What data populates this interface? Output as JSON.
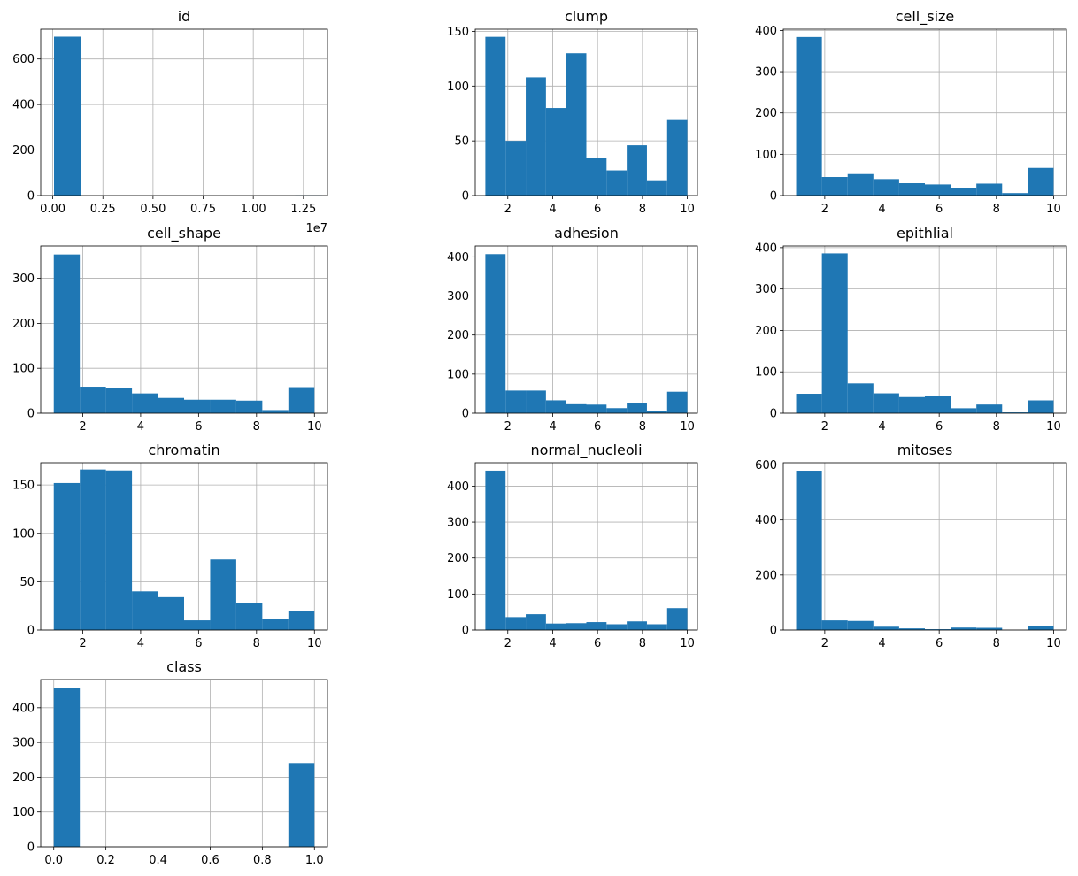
{
  "figure": {
    "background": "#ffffff",
    "bar_color": "#1f77b4",
    "grid_color": "#b0b0b0"
  },
  "chart_data": [
    {
      "type": "bar",
      "title": "id",
      "grid": true,
      "xlim": [
        -600000,
        13700000
      ],
      "ylim": [
        0,
        731
      ],
      "xticks": [
        0,
        2500000,
        5000000,
        7500000,
        10000000,
        12500000
      ],
      "xtick_labels": [
        "0.00",
        "0.25",
        "0.50",
        "0.75",
        "1.00",
        "1.25"
      ],
      "xaxis_offset": "1e7",
      "yticks": [
        0,
        200,
        400,
        600
      ],
      "ytick_labels": [
        "0",
        "200",
        "400",
        "600"
      ],
      "bins": [
        61777,
        1398155,
        2734533,
        4070911,
        5407289,
        6743667,
        8080045,
        9416423,
        10752801,
        12089179,
        13425557
      ],
      "counts": [
        698,
        0,
        0,
        0,
        0,
        0,
        0,
        0,
        0,
        1
      ]
    },
    {
      "type": "bar",
      "title": "clump",
      "grid": true,
      "xlim": [
        0.55,
        10.45
      ],
      "ylim": [
        0,
        152
      ],
      "xticks": [
        2,
        4,
        6,
        8,
        10
      ],
      "xtick_labels": [
        "2",
        "4",
        "6",
        "8",
        "10"
      ],
      "yticks": [
        0,
        50,
        100,
        150
      ],
      "ytick_labels": [
        "0",
        "50",
        "100",
        "150"
      ],
      "bins": [
        1,
        1.9,
        2.8,
        3.7,
        4.6,
        5.5,
        6.4,
        7.3,
        8.2,
        9.1,
        10
      ],
      "counts": [
        145,
        50,
        108,
        80,
        130,
        34,
        23,
        46,
        14,
        69
      ]
    },
    {
      "type": "bar",
      "title": "cell_size",
      "grid": true,
      "xlim": [
        0.55,
        10.45
      ],
      "ylim": [
        0,
        403
      ],
      "xticks": [
        2,
        4,
        6,
        8,
        10
      ],
      "xtick_labels": [
        "2",
        "4",
        "6",
        "8",
        "10"
      ],
      "yticks": [
        0,
        100,
        200,
        300,
        400
      ],
      "ytick_labels": [
        "0",
        "100",
        "200",
        "300",
        "400"
      ],
      "bins": [
        1,
        1.9,
        2.8,
        3.7,
        4.6,
        5.5,
        6.4,
        7.3,
        8.2,
        9.1,
        10
      ],
      "counts": [
        384,
        45,
        52,
        40,
        30,
        27,
        19,
        29,
        6,
        67
      ]
    },
    {
      "type": "bar",
      "title": "cell_shape",
      "grid": true,
      "xlim": [
        0.55,
        10.45
      ],
      "ylim": [
        0,
        372
      ],
      "xticks": [
        2,
        4,
        6,
        8,
        10
      ],
      "xtick_labels": [
        "2",
        "4",
        "6",
        "8",
        "10"
      ],
      "yticks": [
        0,
        100,
        200,
        300
      ],
      "ytick_labels": [
        "0",
        "100",
        "200",
        "300"
      ],
      "bins": [
        1,
        1.9,
        2.8,
        3.7,
        4.6,
        5.5,
        6.4,
        7.3,
        8.2,
        9.1,
        10
      ],
      "counts": [
        353,
        59,
        56,
        44,
        34,
        30,
        30,
        28,
        7,
        58
      ]
    },
    {
      "type": "bar",
      "title": "adhesion",
      "grid": true,
      "xlim": [
        0.55,
        10.45
      ],
      "ylim": [
        0,
        428
      ],
      "xticks": [
        2,
        4,
        6,
        8,
        10
      ],
      "xtick_labels": [
        "2",
        "4",
        "6",
        "8",
        "10"
      ],
      "yticks": [
        0,
        100,
        200,
        300,
        400
      ],
      "ytick_labels": [
        "0",
        "100",
        "200",
        "300",
        "400"
      ],
      "bins": [
        1,
        1.9,
        2.8,
        3.7,
        4.6,
        5.5,
        6.4,
        7.3,
        8.2,
        9.1,
        10
      ],
      "counts": [
        407,
        58,
        58,
        33,
        23,
        22,
        13,
        25,
        5,
        55
      ]
    },
    {
      "type": "bar",
      "title": "epithlial",
      "grid": true,
      "xlim": [
        0.55,
        10.45
      ],
      "ylim": [
        0,
        404
      ],
      "xticks": [
        2,
        4,
        6,
        8,
        10
      ],
      "xtick_labels": [
        "2",
        "4",
        "6",
        "8",
        "10"
      ],
      "yticks": [
        0,
        100,
        200,
        300,
        400
      ],
      "ytick_labels": [
        "0",
        "100",
        "200",
        "300",
        "400"
      ],
      "bins": [
        1,
        1.9,
        2.8,
        3.7,
        4.6,
        5.5,
        6.4,
        7.3,
        8.2,
        9.1,
        10
      ],
      "counts": [
        47,
        386,
        72,
        48,
        39,
        41,
        12,
        21,
        2,
        31
      ]
    },
    {
      "type": "bar",
      "title": "chromatin",
      "grid": true,
      "xlim": [
        0.55,
        10.45
      ],
      "ylim": [
        0,
        173
      ],
      "xticks": [
        2,
        4,
        6,
        8,
        10
      ],
      "xtick_labels": [
        "2",
        "4",
        "6",
        "8",
        "10"
      ],
      "yticks": [
        0,
        50,
        100,
        150
      ],
      "ytick_labels": [
        "0",
        "50",
        "100",
        "150"
      ],
      "bins": [
        1,
        1.9,
        2.8,
        3.7,
        4.6,
        5.5,
        6.4,
        7.3,
        8.2,
        9.1,
        10
      ],
      "counts": [
        152,
        166,
        165,
        40,
        34,
        10,
        73,
        28,
        11,
        20
      ]
    },
    {
      "type": "bar",
      "title": "normal_nucleoli",
      "grid": true,
      "xlim": [
        0.55,
        10.45
      ],
      "ylim": [
        0,
        465
      ],
      "xticks": [
        2,
        4,
        6,
        8,
        10
      ],
      "xtick_labels": [
        "2",
        "4",
        "6",
        "8",
        "10"
      ],
      "yticks": [
        0,
        100,
        200,
        300,
        400
      ],
      "ytick_labels": [
        "0",
        "100",
        "200",
        "300",
        "400"
      ],
      "bins": [
        1,
        1.9,
        2.8,
        3.7,
        4.6,
        5.5,
        6.4,
        7.3,
        8.2,
        9.1,
        10
      ],
      "counts": [
        443,
        36,
        44,
        18,
        19,
        22,
        16,
        24,
        16,
        61
      ]
    },
    {
      "type": "bar",
      "title": "mitoses",
      "grid": true,
      "xlim": [
        0.55,
        10.45
      ],
      "ylim": [
        0,
        608
      ],
      "xticks": [
        2,
        4,
        6,
        8,
        10
      ],
      "xtick_labels": [
        "2",
        "4",
        "6",
        "8",
        "10"
      ],
      "yticks": [
        0,
        200,
        400,
        600
      ],
      "ytick_labels": [
        "0",
        "200",
        "400",
        "600"
      ],
      "bins": [
        1,
        1.9,
        2.8,
        3.7,
        4.6,
        5.5,
        6.4,
        7.3,
        8.2,
        9.1,
        10
      ],
      "counts": [
        579,
        35,
        33,
        12,
        6,
        3,
        9,
        8,
        0,
        14
      ]
    },
    {
      "type": "bar",
      "title": "class",
      "grid": true,
      "xlim": [
        -0.05,
        1.05
      ],
      "ylim": [
        0,
        481
      ],
      "xticks": [
        0,
        0.2,
        0.4,
        0.6,
        0.8,
        1.0
      ],
      "xtick_labels": [
        "0.0",
        "0.2",
        "0.4",
        "0.6",
        "0.8",
        "1.0"
      ],
      "yticks": [
        0,
        100,
        200,
        300,
        400
      ],
      "ytick_labels": [
        "0",
        "100",
        "200",
        "300",
        "400"
      ],
      "bins": [
        0,
        0.1,
        0.2,
        0.3,
        0.4,
        0.5,
        0.6,
        0.7,
        0.8,
        0.9,
        1.0
      ],
      "counts": [
        458,
        0,
        0,
        0,
        0,
        0,
        0,
        0,
        0,
        241
      ]
    }
  ]
}
